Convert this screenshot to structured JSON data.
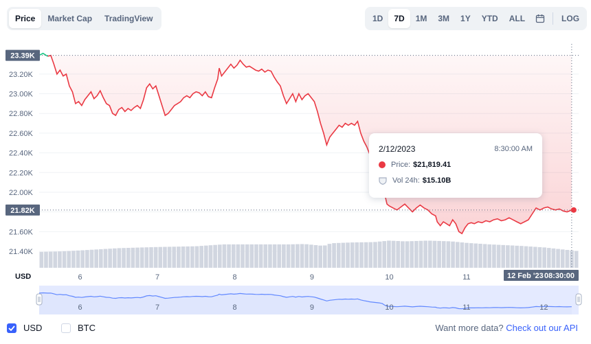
{
  "tabs": [
    {
      "label": "Price",
      "active": true
    },
    {
      "label": "Market Cap",
      "active": false
    },
    {
      "label": "TradingView",
      "active": false
    }
  ],
  "ranges": [
    {
      "label": "1D",
      "active": false
    },
    {
      "label": "7D",
      "active": true
    },
    {
      "label": "1M",
      "active": false
    },
    {
      "label": "3M",
      "active": false
    },
    {
      "label": "1Y",
      "active": false
    },
    {
      "label": "YTD",
      "active": false
    },
    {
      "label": "ALL",
      "active": false
    }
  ],
  "calendar_icon": "calendar-icon",
  "log_label": "LOG",
  "tooltip": {
    "date": "2/12/2023",
    "time": "8:30:00 AM",
    "price_label": "Price:",
    "price_value": "$21,819.41",
    "vol_label": "Vol 24h:",
    "vol_value": "$15.10B"
  },
  "footer": {
    "usd_label": "USD",
    "btc_label": "BTC",
    "usd_checked": true,
    "btc_checked": false,
    "api_text": "Want more data?",
    "api_link": "Check out our API"
  },
  "colors": {
    "down": "#ea3943",
    "up": "#16c784",
    "accent": "#3861fb",
    "volume": "#cfd6e4"
  },
  "chart_data": {
    "type": "line",
    "currency_label": "USD",
    "y_ticks": [
      "23.20K",
      "23.00K",
      "22.80K",
      "22.60K",
      "22.40K",
      "22.20K",
      "22.00K",
      "21.80K",
      "21.60K",
      "21.40K"
    ],
    "y_tick_values": [
      23200,
      23000,
      22800,
      22600,
      22400,
      22200,
      22000,
      21800,
      21600,
      21400
    ],
    "ylim": [
      21400,
      23450
    ],
    "x_ticks": [
      "6",
      "7",
      "8",
      "9",
      "10",
      "11"
    ],
    "x_tick_values": [
      6,
      7,
      8,
      9,
      10,
      11
    ],
    "xlim": [
      5.47,
      12.45
    ],
    "high_label": "23.39K",
    "high_value": 23390,
    "current_label": "21.82K",
    "current_value": 21819.41,
    "crosshair_label_date": "12 Feb '23",
    "crosshair_label_time": "08:30:00",
    "series": [
      {
        "values": [
          [
            5.47,
            23390
          ],
          [
            5.52,
            23410
          ],
          [
            5.58,
            23380
          ],
          [
            5.62,
            23390
          ],
          [
            5.66,
            23300
          ],
          [
            5.7,
            23200
          ],
          [
            5.74,
            23240
          ],
          [
            5.78,
            23180
          ],
          [
            5.82,
            23200
          ],
          [
            5.86,
            23080
          ],
          [
            5.9,
            23020
          ],
          [
            5.94,
            22900
          ],
          [
            5.98,
            22920
          ],
          [
            6.02,
            22880
          ],
          [
            6.06,
            22940
          ],
          [
            6.1,
            22980
          ],
          [
            6.14,
            23020
          ],
          [
            6.18,
            22950
          ],
          [
            6.22,
            22980
          ],
          [
            6.26,
            23030
          ],
          [
            6.3,
            22960
          ],
          [
            6.34,
            22900
          ],
          [
            6.38,
            22880
          ],
          [
            6.42,
            22800
          ],
          [
            6.46,
            22780
          ],
          [
            6.5,
            22840
          ],
          [
            6.54,
            22860
          ],
          [
            6.58,
            22820
          ],
          [
            6.62,
            22850
          ],
          [
            6.66,
            22830
          ],
          [
            6.7,
            22860
          ],
          [
            6.74,
            22880
          ],
          [
            6.78,
            22850
          ],
          [
            6.82,
            22940
          ],
          [
            6.86,
            23060
          ],
          [
            6.9,
            23100
          ],
          [
            6.94,
            23050
          ],
          [
            6.98,
            23080
          ],
          [
            7.02,
            22980
          ],
          [
            7.06,
            22880
          ],
          [
            7.1,
            22780
          ],
          [
            7.14,
            22800
          ],
          [
            7.18,
            22840
          ],
          [
            7.22,
            22880
          ],
          [
            7.26,
            22900
          ],
          [
            7.3,
            22920
          ],
          [
            7.34,
            22960
          ],
          [
            7.38,
            22980
          ],
          [
            7.42,
            22960
          ],
          [
            7.46,
            23000
          ],
          [
            7.5,
            23020
          ],
          [
            7.54,
            23010
          ],
          [
            7.58,
            22980
          ],
          [
            7.62,
            23020
          ],
          [
            7.66,
            22970
          ],
          [
            7.7,
            22960
          ],
          [
            7.74,
            23060
          ],
          [
            7.78,
            23150
          ],
          [
            7.8,
            23260
          ],
          [
            7.83,
            23180
          ],
          [
            7.87,
            23220
          ],
          [
            7.91,
            23260
          ],
          [
            7.95,
            23300
          ],
          [
            7.99,
            23260
          ],
          [
            8.03,
            23290
          ],
          [
            8.07,
            23340
          ],
          [
            8.11,
            23300
          ],
          [
            8.15,
            23270
          ],
          [
            8.19,
            23280
          ],
          [
            8.23,
            23260
          ],
          [
            8.27,
            23240
          ],
          [
            8.31,
            23230
          ],
          [
            8.35,
            23250
          ],
          [
            8.39,
            23220
          ],
          [
            8.43,
            23240
          ],
          [
            8.47,
            23230
          ],
          [
            8.51,
            23170
          ],
          [
            8.55,
            23120
          ],
          [
            8.59,
            23080
          ],
          [
            8.63,
            22980
          ],
          [
            8.67,
            22900
          ],
          [
            8.71,
            22950
          ],
          [
            8.75,
            23000
          ],
          [
            8.79,
            22920
          ],
          [
            8.83,
            23000
          ],
          [
            8.87,
            22940
          ],
          [
            8.91,
            22980
          ],
          [
            8.95,
            23000
          ],
          [
            8.99,
            22960
          ],
          [
            9.03,
            22920
          ],
          [
            9.07,
            22820
          ],
          [
            9.11,
            22700
          ],
          [
            9.15,
            22600
          ],
          [
            9.19,
            22480
          ],
          [
            9.23,
            22560
          ],
          [
            9.27,
            22600
          ],
          [
            9.31,
            22640
          ],
          [
            9.35,
            22680
          ],
          [
            9.39,
            22660
          ],
          [
            9.43,
            22700
          ],
          [
            9.47,
            22680
          ],
          [
            9.51,
            22700
          ],
          [
            9.55,
            22680
          ],
          [
            9.59,
            22720
          ],
          [
            9.63,
            22600
          ],
          [
            9.67,
            22520
          ],
          [
            9.71,
            22460
          ],
          [
            9.75,
            22380
          ],
          [
            9.79,
            22340
          ],
          [
            9.83,
            22300
          ],
          [
            9.87,
            22260
          ],
          [
            9.91,
            22180
          ],
          [
            9.93,
            22060
          ],
          [
            9.95,
            21950
          ],
          [
            9.97,
            21880
          ],
          [
            10.0,
            21860
          ],
          [
            10.05,
            21840
          ],
          [
            10.1,
            21820
          ],
          [
            10.15,
            21850
          ],
          [
            10.2,
            21880
          ],
          [
            10.25,
            21840
          ],
          [
            10.3,
            21800
          ],
          [
            10.35,
            21840
          ],
          [
            10.4,
            21870
          ],
          [
            10.45,
            21840
          ],
          [
            10.5,
            21820
          ],
          [
            10.55,
            21780
          ],
          [
            10.6,
            21760
          ],
          [
            10.62,
            21700
          ],
          [
            10.66,
            21660
          ],
          [
            10.7,
            21700
          ],
          [
            10.74,
            21680
          ],
          [
            10.78,
            21660
          ],
          [
            10.82,
            21720
          ],
          [
            10.86,
            21680
          ],
          [
            10.9,
            21600
          ],
          [
            10.94,
            21580
          ],
          [
            10.98,
            21640
          ],
          [
            11.02,
            21680
          ],
          [
            11.06,
            21690
          ],
          [
            11.1,
            21680
          ],
          [
            11.15,
            21700
          ],
          [
            11.2,
            21690
          ],
          [
            11.25,
            21710
          ],
          [
            11.3,
            21700
          ],
          [
            11.35,
            21720
          ],
          [
            11.4,
            21730
          ],
          [
            11.45,
            21710
          ],
          [
            11.5,
            21720
          ],
          [
            11.55,
            21740
          ],
          [
            11.6,
            21720
          ],
          [
            11.65,
            21700
          ],
          [
            11.7,
            21680
          ],
          [
            11.75,
            21700
          ],
          [
            11.8,
            21720
          ],
          [
            11.85,
            21780
          ],
          [
            11.9,
            21840
          ],
          [
            11.95,
            21820
          ],
          [
            12.0,
            21840
          ],
          [
            12.05,
            21850
          ],
          [
            12.1,
            21830
          ],
          [
            12.15,
            21820
          ],
          [
            12.2,
            21830
          ],
          [
            12.25,
            21810
          ],
          [
            12.3,
            21800
          ],
          [
            12.36,
            21819
          ]
        ]
      }
    ],
    "volume": {
      "values": [
        [
          5.47,
          0.42
        ],
        [
          5.7,
          0.43
        ],
        [
          6.0,
          0.46
        ],
        [
          6.5,
          0.52
        ],
        [
          7.0,
          0.55
        ],
        [
          7.5,
          0.57
        ],
        [
          7.85,
          0.62
        ],
        [
          8.2,
          0.62
        ],
        [
          8.7,
          0.62
        ],
        [
          8.9,
          0.63
        ],
        [
          9.15,
          0.58
        ],
        [
          9.25,
          0.65
        ],
        [
          9.5,
          0.67
        ],
        [
          9.8,
          0.68
        ],
        [
          10.0,
          0.72
        ],
        [
          10.2,
          0.7
        ],
        [
          10.5,
          0.72
        ],
        [
          10.8,
          0.7
        ],
        [
          11.0,
          0.66
        ],
        [
          11.3,
          0.62
        ],
        [
          11.7,
          0.58
        ],
        [
          12.0,
          0.54
        ],
        [
          12.45,
          0.44
        ]
      ]
    },
    "navigator": {
      "x_ticks": [
        "6",
        "7",
        "8",
        "9",
        "10",
        "11",
        "12"
      ],
      "x_tick_values": [
        6,
        7,
        8,
        9,
        10,
        11,
        12
      ]
    }
  }
}
